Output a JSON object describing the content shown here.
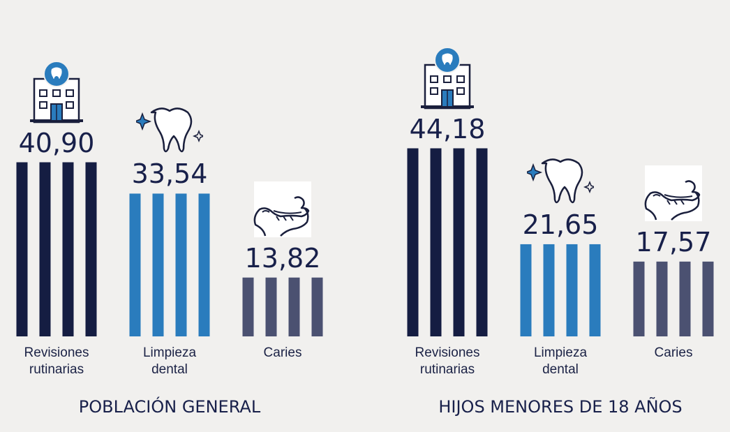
{
  "chart_data": [
    {
      "type": "bar",
      "title": "POBLACIÓN GENERAL",
      "categories": [
        "Revisiones\nrutinarias",
        "Limpieza\ndental",
        "Caries"
      ],
      "values": [
        40.9,
        33.54,
        13.82
      ],
      "value_labels": [
        "40,90",
        "33,54",
        "13,82"
      ],
      "icons": [
        "hospital-icon",
        "tooth-icon",
        "jaw-icon"
      ],
      "colors": [
        "#151d42",
        "#2a7cbd",
        "#4b5171"
      ]
    },
    {
      "type": "bar",
      "title": "HIJOS MENORES DE 18 AÑOS",
      "categories": [
        "Revisiones\nrutinarias",
        "Limpieza\ndental",
        "Caries"
      ],
      "values": [
        44.18,
        21.65,
        17.57
      ],
      "value_labels": [
        "44,18",
        "21,65",
        "17,57"
      ],
      "icons": [
        "hospital-icon",
        "tooth-icon",
        "jaw-icon"
      ],
      "colors": [
        "#151d42",
        "#2a7cbd",
        "#4b5171"
      ]
    }
  ]
}
